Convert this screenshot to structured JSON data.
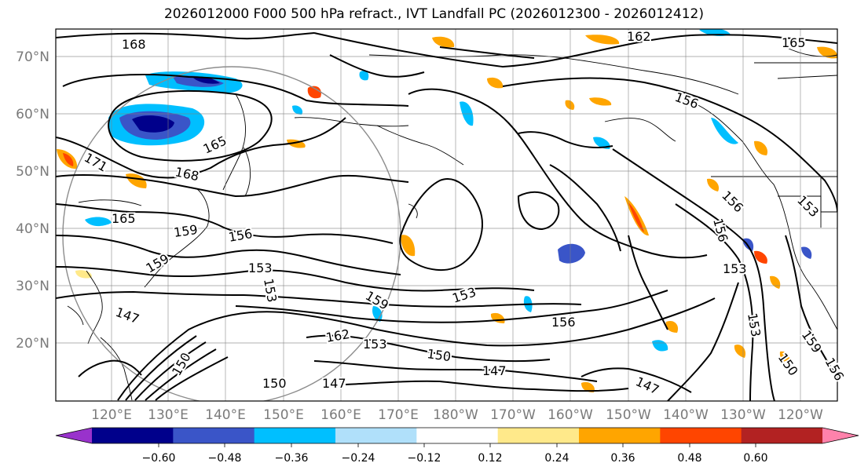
{
  "title": "2026012000 F000 500 hPa refract., IVT Landfall PC (2026012300 - 2026012412)",
  "lat_labels": [
    "70°N",
    "60°N",
    "50°N",
    "40°N",
    "30°N",
    "20°N"
  ],
  "lon_labels": [
    "120°E",
    "130°E",
    "140°E",
    "150°E",
    "160°E",
    "170°E",
    "180°W",
    "170°W",
    "160°W",
    "150°W",
    "140°W",
    "130°W",
    "120°W"
  ],
  "colorbar": {
    "ticks": [
      "−0.60",
      "−0.48",
      "−0.36",
      "−0.24",
      "−0.12",
      "0.12",
      "0.24",
      "0.36",
      "0.48",
      "0.60"
    ],
    "colors": [
      "#9932cc",
      "#00008b",
      "#3a55c8",
      "#00bfff",
      "#b0e0fa",
      "#ffffff",
      "#ffe98a",
      "#ffa500",
      "#ff4500",
      "#b22222",
      "#ff82ab"
    ]
  },
  "contour_labels": [
    "168",
    "162",
    "165",
    "156",
    "171",
    "168",
    "165",
    "165",
    "159",
    "156",
    "153",
    "159",
    "147",
    "150",
    "162",
    "153",
    "150",
    "147",
    "153",
    "156",
    "159",
    "153",
    "156",
    "153",
    "147",
    "150",
    "153",
    "156",
    "159",
    "150",
    "147",
    "153",
    "156"
  ]
}
